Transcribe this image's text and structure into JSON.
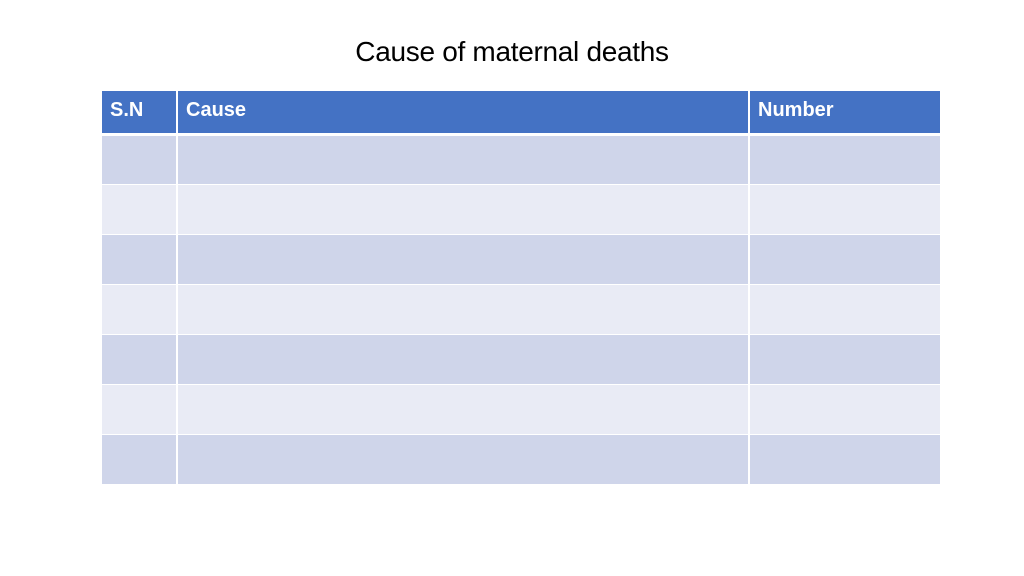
{
  "title": "Cause of maternal deaths",
  "table": {
    "headers": [
      "S.N",
      "Cause",
      "Number"
    ],
    "rows": [
      [
        "",
        "",
        ""
      ],
      [
        "",
        "",
        ""
      ],
      [
        "",
        "",
        ""
      ],
      [
        "",
        "",
        ""
      ],
      [
        "",
        "",
        ""
      ],
      [
        "",
        "",
        ""
      ],
      [
        "",
        "",
        ""
      ]
    ]
  },
  "colors": {
    "header_bg": "#4472c4",
    "row_odd_bg": "#cfd5ea",
    "row_even_bg": "#e9ebf5"
  }
}
